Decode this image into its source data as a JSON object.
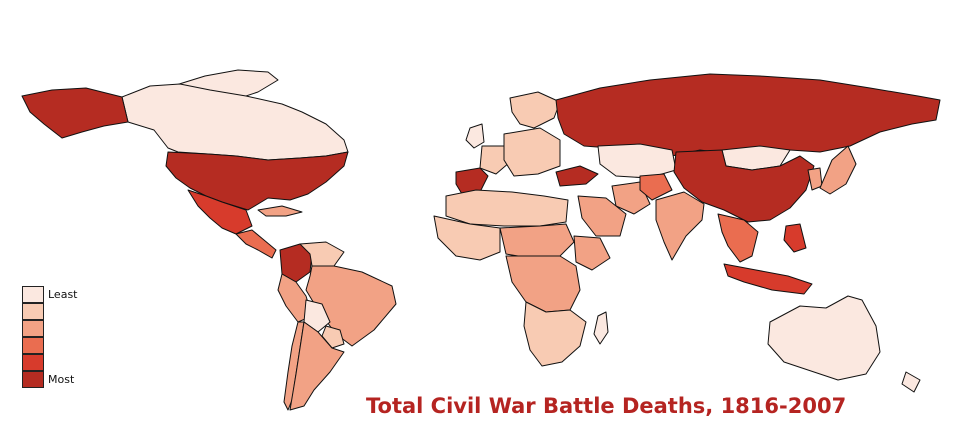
{
  "title": "Total Civil War Battle Deaths, 1816-2007",
  "title_color": "#b52421",
  "legend": {
    "least_label": "Least",
    "most_label": "Most",
    "colors": [
      "#fbe8e0",
      "#f8cbb3",
      "#f2a285",
      "#ea6d50",
      "#d73b2c",
      "#b52c22"
    ]
  },
  "country_levels": {
    "canada": 0,
    "alaska": 5,
    "united-states": 5,
    "mexico": 4,
    "greenland": 0,
    "cuba": 2,
    "central-america": 3,
    "colombia": 5,
    "venezuela": 1,
    "peru": 2,
    "brazil": 2,
    "bolivia": 0,
    "chile": 2,
    "argentina": 2,
    "paraguay": 1,
    "spain": 5,
    "france": 1,
    "scandinavia": 1,
    "eastern-europe": 1,
    "russia": 5,
    "turkey": 5,
    "kazakhstan": 0,
    "mongolia": 0,
    "china": 5,
    "iran": 2,
    "afghanistan": 3,
    "india": 2,
    "southeast-asia": 3,
    "korea": 2,
    "japan": 2,
    "indonesia": 4,
    "philippines": 4,
    "north-africa": 1,
    "west-africa": 1,
    "sahel": 2,
    "ethiopia": 2,
    "central-africa": 2,
    "southern-africa": 1,
    "madagascar": 0,
    "arabia": 2,
    "australia": 0,
    "new-zealand": 0,
    "uk": 0
  }
}
